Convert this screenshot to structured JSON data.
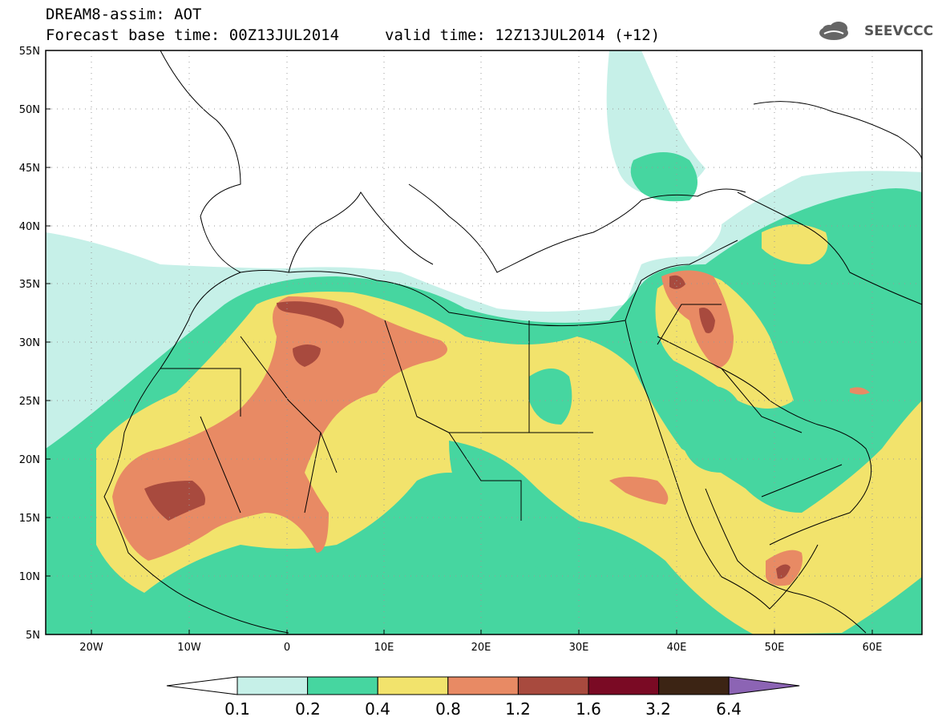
{
  "title": {
    "line1": "DREAM8-assim: AOT",
    "line2": "Forecast base time: 00Z13JUL2014",
    "valid": "valid time: 12Z13JUL2014 (+12)"
  },
  "logo": {
    "text": "SEEVCCC",
    "icon": "cloud-icon"
  },
  "map": {
    "lat_range": [
      5,
      55
    ],
    "lon_range": [
      -25,
      65
    ],
    "lat_ticks": [
      "5N",
      "10N",
      "15N",
      "20N",
      "25N",
      "30N",
      "35N",
      "40N",
      "45N",
      "50N",
      "55N"
    ],
    "lon_ticks": [
      "20W",
      "10W",
      "0",
      "10E",
      "20E",
      "30E",
      "40E",
      "50E",
      "60E"
    ],
    "grid": "dotted"
  },
  "colorbar": {
    "labels": [
      "0.1",
      "0.2",
      "0.4",
      "0.8",
      "1.2",
      "1.6",
      "3.2",
      "6.4"
    ],
    "colors": [
      "#ffffff",
      "#c6f0e8",
      "#46d6a0",
      "#f2e36c",
      "#e88a64",
      "#a84a3e",
      "#7a0a24",
      "#3c2414",
      "#8c64b4"
    ]
  }
}
